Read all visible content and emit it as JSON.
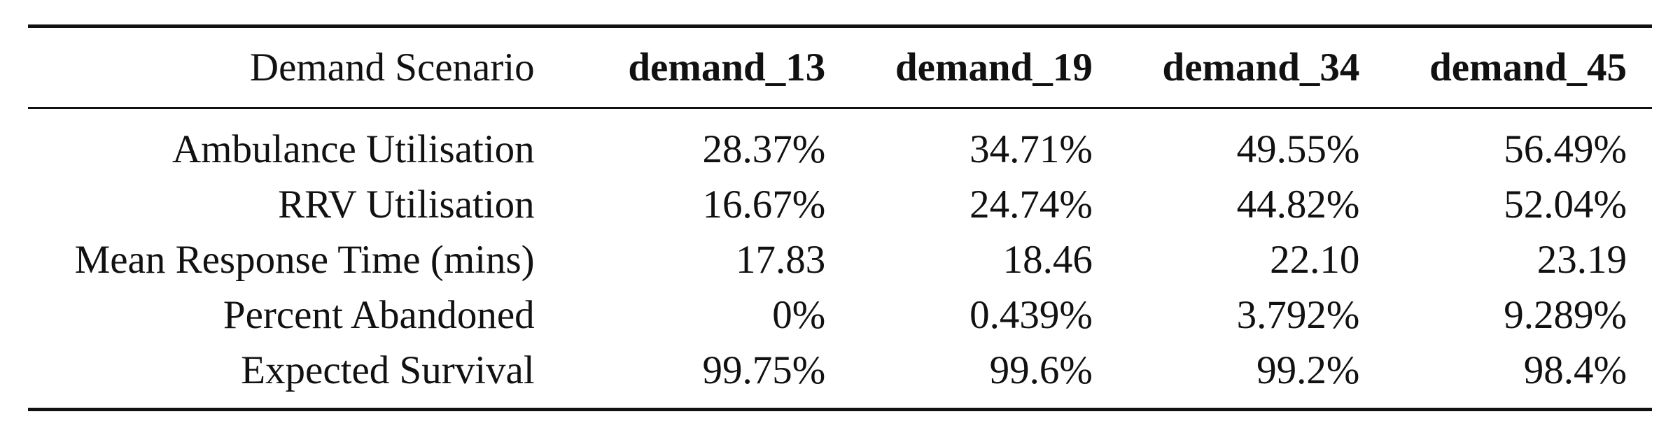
{
  "chart_data": {
    "type": "table",
    "columns": [
      "Demand Scenario",
      "demand_13",
      "demand_19",
      "demand_34",
      "demand_45"
    ],
    "rows": [
      {
        "label": "Ambulance Utilisation",
        "values": [
          "28.37%",
          "34.71%",
          "49.55%",
          "56.49%"
        ]
      },
      {
        "label": "RRV Utilisation",
        "values": [
          "16.67%",
          "24.74%",
          "44.82%",
          "52.04%"
        ]
      },
      {
        "label": "Mean Response Time (mins)",
        "values": [
          "17.83",
          "18.46",
          "22.10",
          "23.19"
        ]
      },
      {
        "label": "Percent Abandoned",
        "values": [
          "0%",
          "0.439%",
          "3.792%",
          "9.289%"
        ]
      },
      {
        "label": "Expected Survival",
        "values": [
          "99.75%",
          "99.6%",
          "99.2%",
          "98.4%"
        ]
      }
    ]
  }
}
